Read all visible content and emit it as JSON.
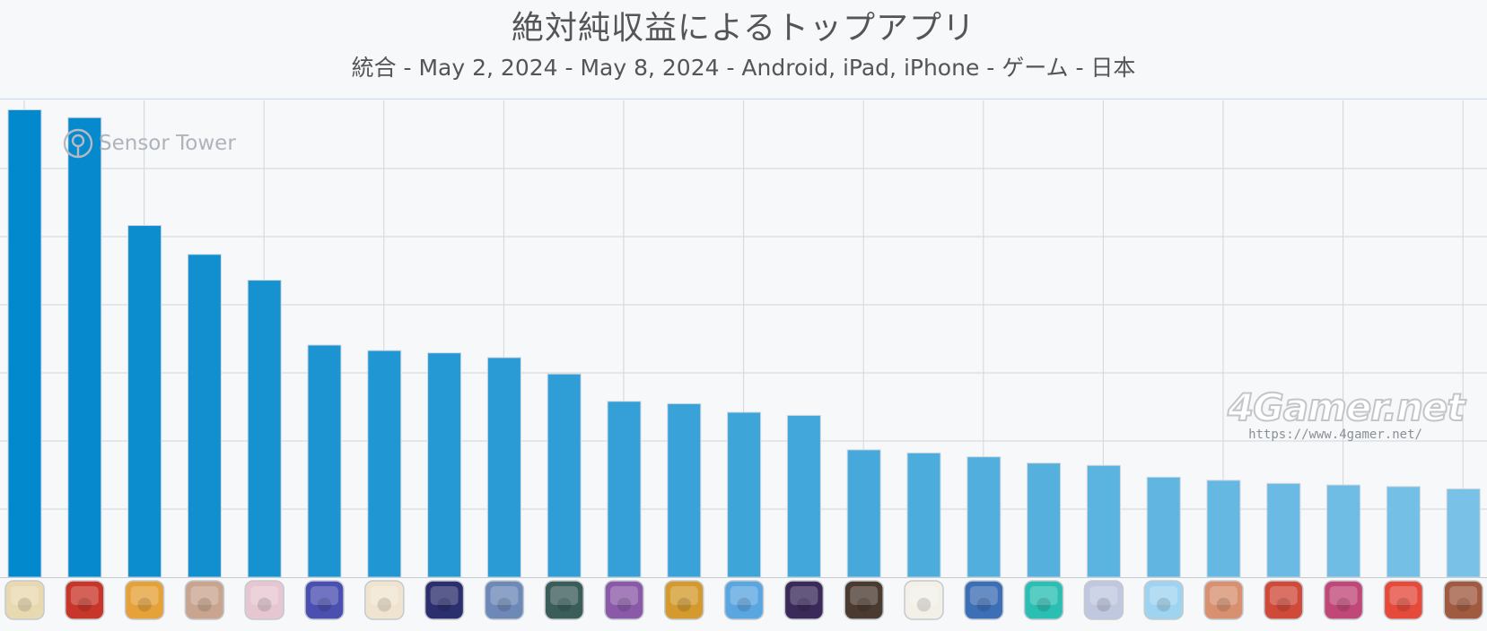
{
  "chart_data": {
    "type": "bar",
    "title": "絶対純収益によるトップアプリ",
    "subtitle": "統合 - May 2, 2024 - May 8, 2024 - Android, iPad, iPhone - ゲーム - 日本",
    "xlabel": "",
    "ylabel": "",
    "ylim": [
      0,
      6.1
    ],
    "grid": true,
    "categories": [
      "app-icon-1",
      "app-icon-2",
      "app-icon-3",
      "app-icon-4",
      "app-icon-5",
      "app-icon-6",
      "app-icon-7",
      "app-icon-8",
      "app-icon-9",
      "app-icon-10",
      "app-icon-11",
      "app-icon-12",
      "app-icon-13",
      "app-icon-14",
      "app-icon-15",
      "app-icon-16",
      "app-icon-17",
      "app-icon-18",
      "app-icon-19",
      "app-icon-20",
      "app-icon-21",
      "app-icon-22",
      "app-icon-23",
      "app-icon-24",
      "app-icon-25"
    ],
    "values": [
      5.98,
      5.88,
      4.5,
      4.13,
      3.8,
      2.97,
      2.9,
      2.87,
      2.81,
      2.6,
      2.25,
      2.22,
      2.11,
      2.07,
      1.63,
      1.59,
      1.54,
      1.46,
      1.43,
      1.28,
      1.24,
      1.2,
      1.18,
      1.16,
      1.13
    ],
    "colors": {
      "bar_start": "#0288cc",
      "bar_end": "#79c1e6",
      "grid": "#d3d6da",
      "background": "#f6f8fa"
    }
  },
  "watermarks": {
    "sensor_tower": "Sensor Tower",
    "gamer_logo": "4Gamer.net",
    "gamer_url": "https://www.4gamer.net/"
  }
}
